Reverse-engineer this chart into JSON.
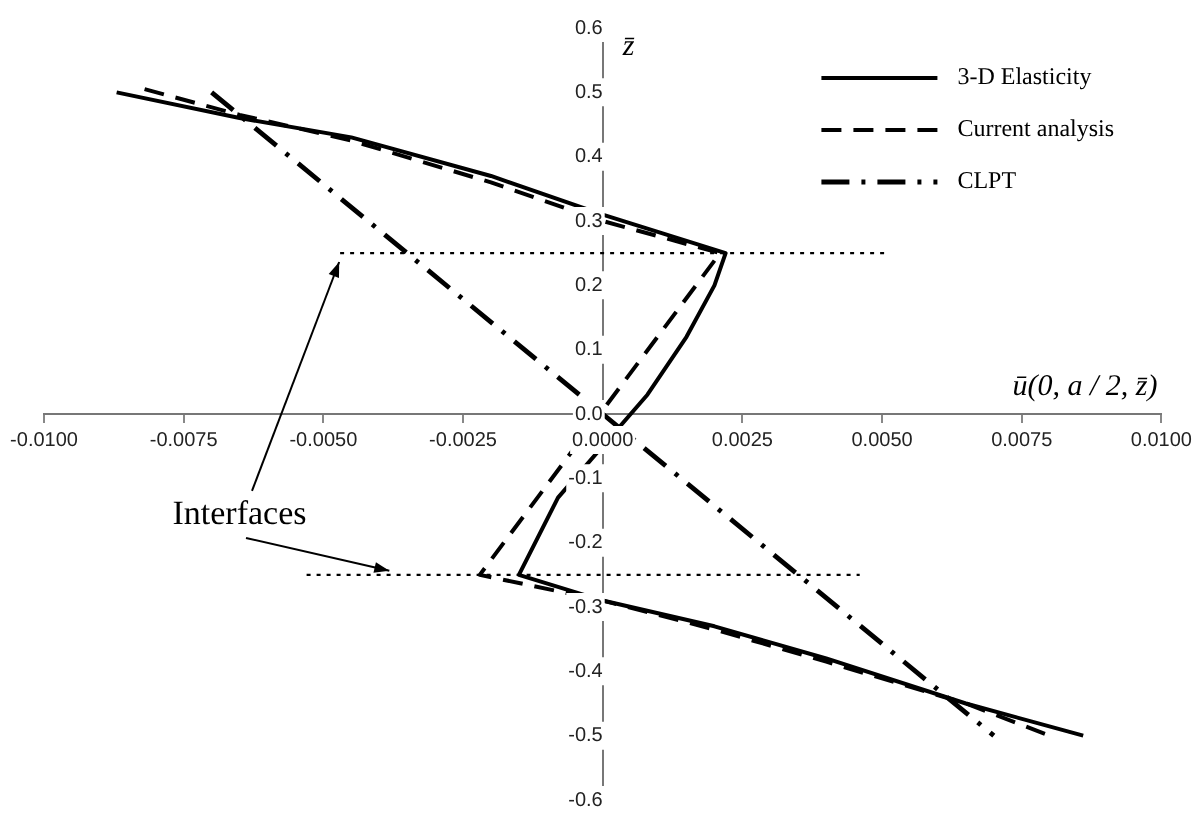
{
  "chart_data": {
    "type": "line",
    "xlabel": "ū(0, a / 2, z̄)",
    "ylabel": "z̄",
    "xlim": [
      -0.01,
      0.01
    ],
    "xticks": [
      {
        "value": -0.01,
        "label": "-0.0100"
      },
      {
        "value": -0.0075,
        "label": "-0.0075"
      },
      {
        "value": -0.005,
        "label": "-0.0050"
      },
      {
        "value": -0.0025,
        "label": "-0.0025"
      },
      {
        "value": 0,
        "label": "0.0000"
      },
      {
        "value": 0.0025,
        "label": "0.0025"
      },
      {
        "value": 0.005,
        "label": "0.0050"
      },
      {
        "value": 0.0075,
        "label": "0.0075"
      },
      {
        "value": 0.01,
        "label": "0.0100"
      }
    ],
    "ylim": [
      -0.6,
      0.6
    ],
    "yticks": [
      {
        "value": -0.6,
        "label": "-0.6"
      },
      -0.5,
      -0.4,
      -0.3,
      -0.2,
      -0.1,
      {
        "value": 0,
        "label": "0.0"
      },
      0.1,
      0.2,
      0.3,
      0.4,
      0.5,
      0.6
    ],
    "grid": false,
    "legend": "top right",
    "annotations": [
      {
        "text": "Interfaces",
        "x": -0.0047,
        "y": 0.25
      }
    ],
    "series": [
      {
        "name": "3-D Elasticity",
        "color": "#000000",
        "line_style": "solid",
        "x": [
          -0.0087,
          -0.0065,
          -0.0045,
          -0.002,
          0,
          0.0022,
          0.002,
          0.0015,
          0.0008,
          -0.0008,
          -0.0015,
          0,
          0.002,
          0.004,
          0.0065,
          0.0086
        ],
        "values": [
          0.5,
          0.46,
          0.43,
          0.37,
          0.31,
          0.25,
          0.2,
          0.12,
          0.03,
          -0.13,
          -0.25,
          -0.29,
          -0.33,
          -0.38,
          -0.45,
          -0.5
        ]
      },
      {
        "name": "Current analysis",
        "color": "#000000",
        "line_style": "dashed",
        "x": [
          -0.0082,
          -0.0065,
          -0.0045,
          -0.002,
          0,
          0.0021,
          -0.0022,
          0,
          0.002,
          0.004,
          0.0065,
          0.008
        ],
        "values": [
          0.505,
          0.465,
          0.425,
          0.36,
          0.3,
          0.25,
          -0.25,
          -0.29,
          -0.335,
          -0.385,
          -0.45,
          -0.5
        ]
      },
      {
        "name": "CLPT",
        "color": "#000000",
        "line_style": "dashdot",
        "x": [
          -0.007,
          0.007
        ],
        "values": [
          0.5,
          -0.5
        ]
      },
      {
        "color": "#000000",
        "line_style": "dotted",
        "x": [
          -0.0047,
          0.0051
        ],
        "values": [
          0.25,
          0.25
        ]
      },
      {
        "color": "#000000",
        "line_style": "dotted",
        "x": [
          -0.0053,
          0.0046
        ],
        "values": [
          -0.25,
          -0.25
        ]
      }
    ]
  }
}
